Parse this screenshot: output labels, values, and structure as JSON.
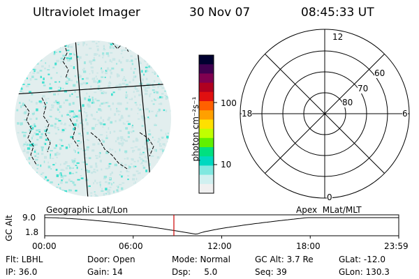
{
  "header": {
    "title": "Ultraviolet Imager",
    "date": "30 Nov 07",
    "time": "08:45:33 UT"
  },
  "colorbar": {
    "label": "photon cm⁻²s⁻¹",
    "ticks": [
      "100",
      "10"
    ],
    "colors": [
      "#000030",
      "#400050",
      "#800050",
      "#b00020",
      "#e01010",
      "#ff6000",
      "#ffa000",
      "#ffe000",
      "#c0ff00",
      "#60f000",
      "#00e080",
      "#00d8c0",
      "#80e8e0",
      "#d0f0f0",
      "#f0f0f0"
    ]
  },
  "polar_plot": {
    "mlt_labels": {
      "top": "12",
      "left": "18",
      "right": "6",
      "bottom": "0"
    },
    "lat_labels": [
      "60",
      "70",
      "80"
    ]
  },
  "orbit_plot": {
    "left_label": "Geographic Lat/Lon",
    "right_label": "Apex  MLat/MLT",
    "y_label": "GC Alt",
    "y_ticks": [
      "9.0",
      "1.8"
    ],
    "x_ticks": [
      "00:00",
      "06:00",
      "12:00",
      "18:00",
      "23:59"
    ],
    "marker_time": "08:45:33",
    "colors": {
      "marker": "#cc0000"
    }
  },
  "info": {
    "flt": "Flt: LBHL",
    "ip": "IP: 36.0",
    "door": "Door: Open",
    "gain": "Gain: 14",
    "mode": "Mode: Normal",
    "dsp": "Dsp:     5.0",
    "gcalt": "GC Alt: 3.7 Re",
    "seq": "Seq: 39",
    "glat": "GLat: -12.0",
    "glon": "GLon: 130.3"
  },
  "colors": {
    "speckle": "#40e0d0",
    "background_speckle": "#d8ecec"
  }
}
